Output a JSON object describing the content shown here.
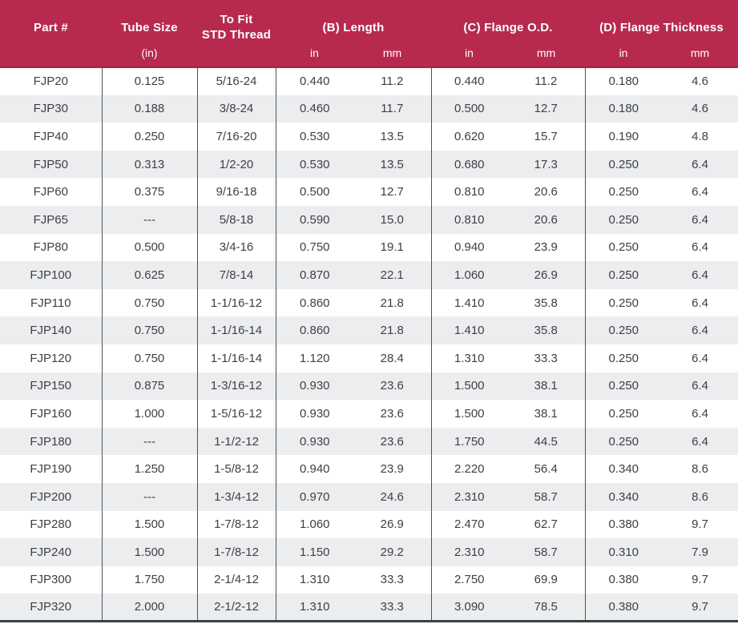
{
  "colors": {
    "header_bg": "#b72a4e",
    "header_edge": "#a32446",
    "header_text": "#ffffff",
    "row_stripe": "#ebedee",
    "body_text": "#3e4044",
    "divider": "#4d5257",
    "bottom_border": "#3c3f42"
  },
  "header": {
    "part_label": "Part #",
    "tube_label": "Tube Size",
    "thread_label_line1": "To Fit",
    "thread_label_line2": "STD Thread",
    "length_label": "(B) Length",
    "flange_od_label": "(C) Flange O.D.",
    "flange_thickness_label": "(D) Flange Thickness",
    "tube_unit": "(in)",
    "unit_in": "in",
    "unit_mm": "mm"
  },
  "table": {
    "column_keys": [
      "part",
      "tube-size-in",
      "std-thread",
      "length-in",
      "length-mm",
      "flange-od-in",
      "flange-od-mm",
      "flange-thickness-in",
      "flange-thickness-mm"
    ],
    "divider_columns": [
      1,
      2,
      3,
      5,
      7
    ],
    "rows": [
      [
        "FJP20",
        "0.125",
        "5/16-24",
        "0.440",
        "11.2",
        "0.440",
        "11.2",
        "0.180",
        "4.6"
      ],
      [
        "FJP30",
        "0.188",
        "3/8-24",
        "0.460",
        "11.7",
        "0.500",
        "12.7",
        "0.180",
        "4.6"
      ],
      [
        "FJP40",
        "0.250",
        "7/16-20",
        "0.530",
        "13.5",
        "0.620",
        "15.7",
        "0.190",
        "4.8"
      ],
      [
        "FJP50",
        "0.313",
        "1/2-20",
        "0.530",
        "13.5",
        "0.680",
        "17.3",
        "0.250",
        "6.4"
      ],
      [
        "FJP60",
        "0.375",
        "9/16-18",
        "0.500",
        "12.7",
        "0.810",
        "20.6",
        "0.250",
        "6.4"
      ],
      [
        "FJP65",
        "---",
        "5/8-18",
        "0.590",
        "15.0",
        "0.810",
        "20.6",
        "0.250",
        "6.4"
      ],
      [
        "FJP80",
        "0.500",
        "3/4-16",
        "0.750",
        "19.1",
        "0.940",
        "23.9",
        "0.250",
        "6.4"
      ],
      [
        "FJP100",
        "0.625",
        "7/8-14",
        "0.870",
        "22.1",
        "1.060",
        "26.9",
        "0.250",
        "6.4"
      ],
      [
        "FJP110",
        "0.750",
        "1-1/16-12",
        "0.860",
        "21.8",
        "1.410",
        "35.8",
        "0.250",
        "6.4"
      ],
      [
        "FJP140",
        "0.750",
        "1-1/16-14",
        "0.860",
        "21.8",
        "1.410",
        "35.8",
        "0.250",
        "6.4"
      ],
      [
        "FJP120",
        "0.750",
        "1-1/16-14",
        "1.120",
        "28.4",
        "1.310",
        "33.3",
        "0.250",
        "6.4"
      ],
      [
        "FJP150",
        "0.875",
        "1-3/16-12",
        "0.930",
        "23.6",
        "1.500",
        "38.1",
        "0.250",
        "6.4"
      ],
      [
        "FJP160",
        "1.000",
        "1-5/16-12",
        "0.930",
        "23.6",
        "1.500",
        "38.1",
        "0.250",
        "6.4"
      ],
      [
        "FJP180",
        "---",
        "1-1/2-12",
        "0.930",
        "23.6",
        "1.750",
        "44.5",
        "0.250",
        "6.4"
      ],
      [
        "FJP190",
        "1.250",
        "1-5/8-12",
        "0.940",
        "23.9",
        "2.220",
        "56.4",
        "0.340",
        "8.6"
      ],
      [
        "FJP200",
        "---",
        "1-3/4-12",
        "0.970",
        "24.6",
        "2.310",
        "58.7",
        "0.340",
        "8.6"
      ],
      [
        "FJP280",
        "1.500",
        "1-7/8-12",
        "1.060",
        "26.9",
        "2.470",
        "62.7",
        "0.380",
        "9.7"
      ],
      [
        "FJP240",
        "1.500",
        "1-7/8-12",
        "1.150",
        "29.2",
        "2.310",
        "58.7",
        "0.310",
        "7.9"
      ],
      [
        "FJP300",
        "1.750",
        "2-1/4-12",
        "1.310",
        "33.3",
        "2.750",
        "69.9",
        "0.380",
        "9.7"
      ],
      [
        "FJP320",
        "2.000",
        "2-1/2-12",
        "1.310",
        "33.3",
        "3.090",
        "78.5",
        "0.380",
        "9.7"
      ]
    ]
  }
}
